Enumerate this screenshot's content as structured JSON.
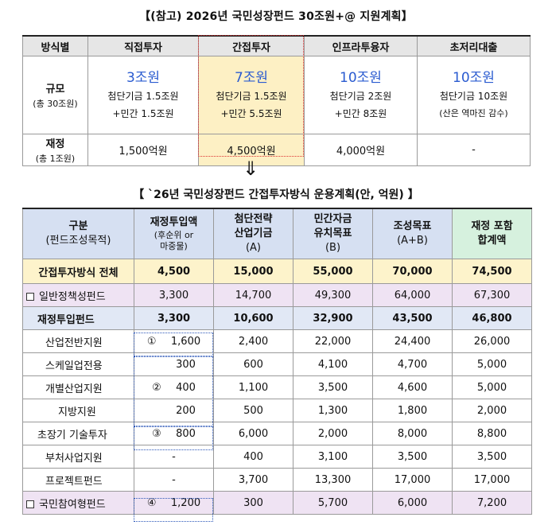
{
  "top": {
    "title": "【(참고) 2026년 국민성장펀드 30조원+@ 지원계획】",
    "headers": [
      "방식별",
      "직접투자",
      "간접투자",
      "인프라투융자",
      "초저리대출"
    ],
    "scale_label": "규모",
    "scale_sub": "(총 30조원)",
    "scale_big": [
      "3조원",
      "7조원",
      "10조원",
      "10조원"
    ],
    "scale_detail1": [
      "첨단기금  1.5조원",
      "첨단기금  1.5조원",
      "첨단기금  2조원",
      "첨단기금  10조원"
    ],
    "scale_detail2": [
      "+민간  1.5조원",
      "+민간  5.5조원",
      "+민간  8조원",
      "(산은  역마진  감수)"
    ],
    "fiscal_label": "재정",
    "fiscal_sub": "(총  1조원)",
    "fiscal_values": [
      "1,500억원",
      "4,500억원",
      "4,000억원",
      "-"
    ]
  },
  "arrow": "⇓",
  "bottom": {
    "title": "【 `26년  국민성장펀드  간접투자방식  운용계획(안,  억원) 】",
    "headers": {
      "c1": "구분",
      "c1b": "(펀드조성목적)",
      "c2": "재정투입액",
      "c2a": "(후순위  or",
      "c2b": "마중물)",
      "c3": "첨단전략",
      "c3b": "산업기금",
      "c3c": "(A)",
      "c4": "민간자금",
      "c4b": "유치목표",
      "c4c": "(B)",
      "c5": "조성목표",
      "c5b": "(A+B)",
      "c6": "재정  포함",
      "c6b": "합계액"
    },
    "rows": [
      {
        "label": "간접투자방식  전체",
        "marker": "",
        "c2": "4,500",
        "c3": "15,000",
        "c4": "55,000",
        "c5": "70,000",
        "c6": "74,500"
      },
      {
        "label": "일반정책성펀드",
        "marker": "",
        "c2": "3,300",
        "c3": "14,700",
        "c4": "49,300",
        "c5": "64,000",
        "c6": "67,300"
      },
      {
        "label": "재정투입펀드",
        "marker": "",
        "c2": "3,300",
        "c3": "10,600",
        "c4": "32,900",
        "c5": "43,500",
        "c6": "46,800"
      },
      {
        "label": "산업전반지원",
        "marker": "①",
        "c2": "1,600",
        "c3": "2,400",
        "c4": "22,000",
        "c5": "24,400",
        "c6": "26,000"
      },
      {
        "label": "스케일업전용",
        "marker": "",
        "c2": "300",
        "c3": "600",
        "c4": "4,100",
        "c5": "4,700",
        "c6": "5,000"
      },
      {
        "label": "개별산업지원",
        "marker": "②",
        "c2": "400",
        "c3": "1,100",
        "c4": "3,500",
        "c5": "4,600",
        "c6": "5,000"
      },
      {
        "label": "지방지원",
        "marker": "",
        "c2": "200",
        "c3": "500",
        "c4": "1,300",
        "c5": "1,800",
        "c6": "2,000"
      },
      {
        "label": "초장기  기술투자",
        "marker": "③",
        "c2": "800",
        "c3": "6,000",
        "c4": "2,000",
        "c5": "8,000",
        "c6": "8,800"
      },
      {
        "label": "부처사업지원",
        "marker": "",
        "c2": "-",
        "c3": "400",
        "c4": "3,100",
        "c5": "3,500",
        "c6": "3,500"
      },
      {
        "label": "프로젝트펀드",
        "marker": "",
        "c2": "-",
        "c3": "3,700",
        "c4": "13,300",
        "c5": "17,000",
        "c6": "17,000"
      },
      {
        "label": "국민참여형펀드",
        "marker": "④",
        "c2": "1,200",
        "c3": "300",
        "c4": "5,700",
        "c5": "6,000",
        "c6": "7,200"
      }
    ]
  }
}
